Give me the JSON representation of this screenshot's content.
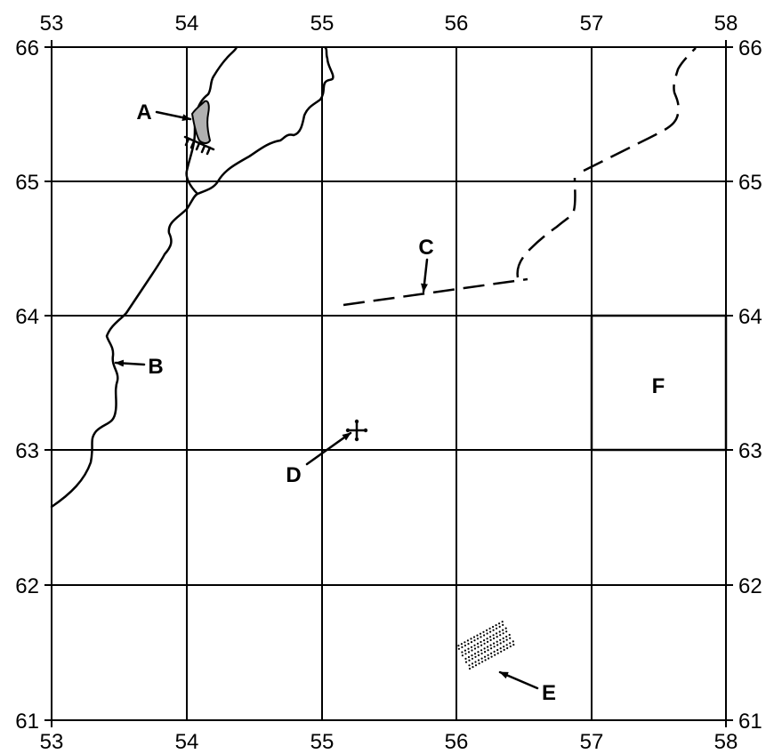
{
  "map": {
    "top_ticks": [
      "53",
      "54",
      "55",
      "56",
      "57",
      "58"
    ],
    "bottom_ticks": [
      "53",
      "54",
      "55",
      "56",
      "57",
      "58"
    ],
    "left_ticks": [
      "66",
      "65",
      "64",
      "63",
      "62",
      "61"
    ],
    "right_ticks": [
      "66",
      "65",
      "64",
      "63",
      "62",
      "61"
    ],
    "labels": {
      "a": "A",
      "b": "B",
      "c": "C",
      "d": "D",
      "e": "E",
      "f": "F"
    },
    "colors": {
      "line": "#000000",
      "shade": "#b0b0b0",
      "background": "#ffffff"
    }
  }
}
